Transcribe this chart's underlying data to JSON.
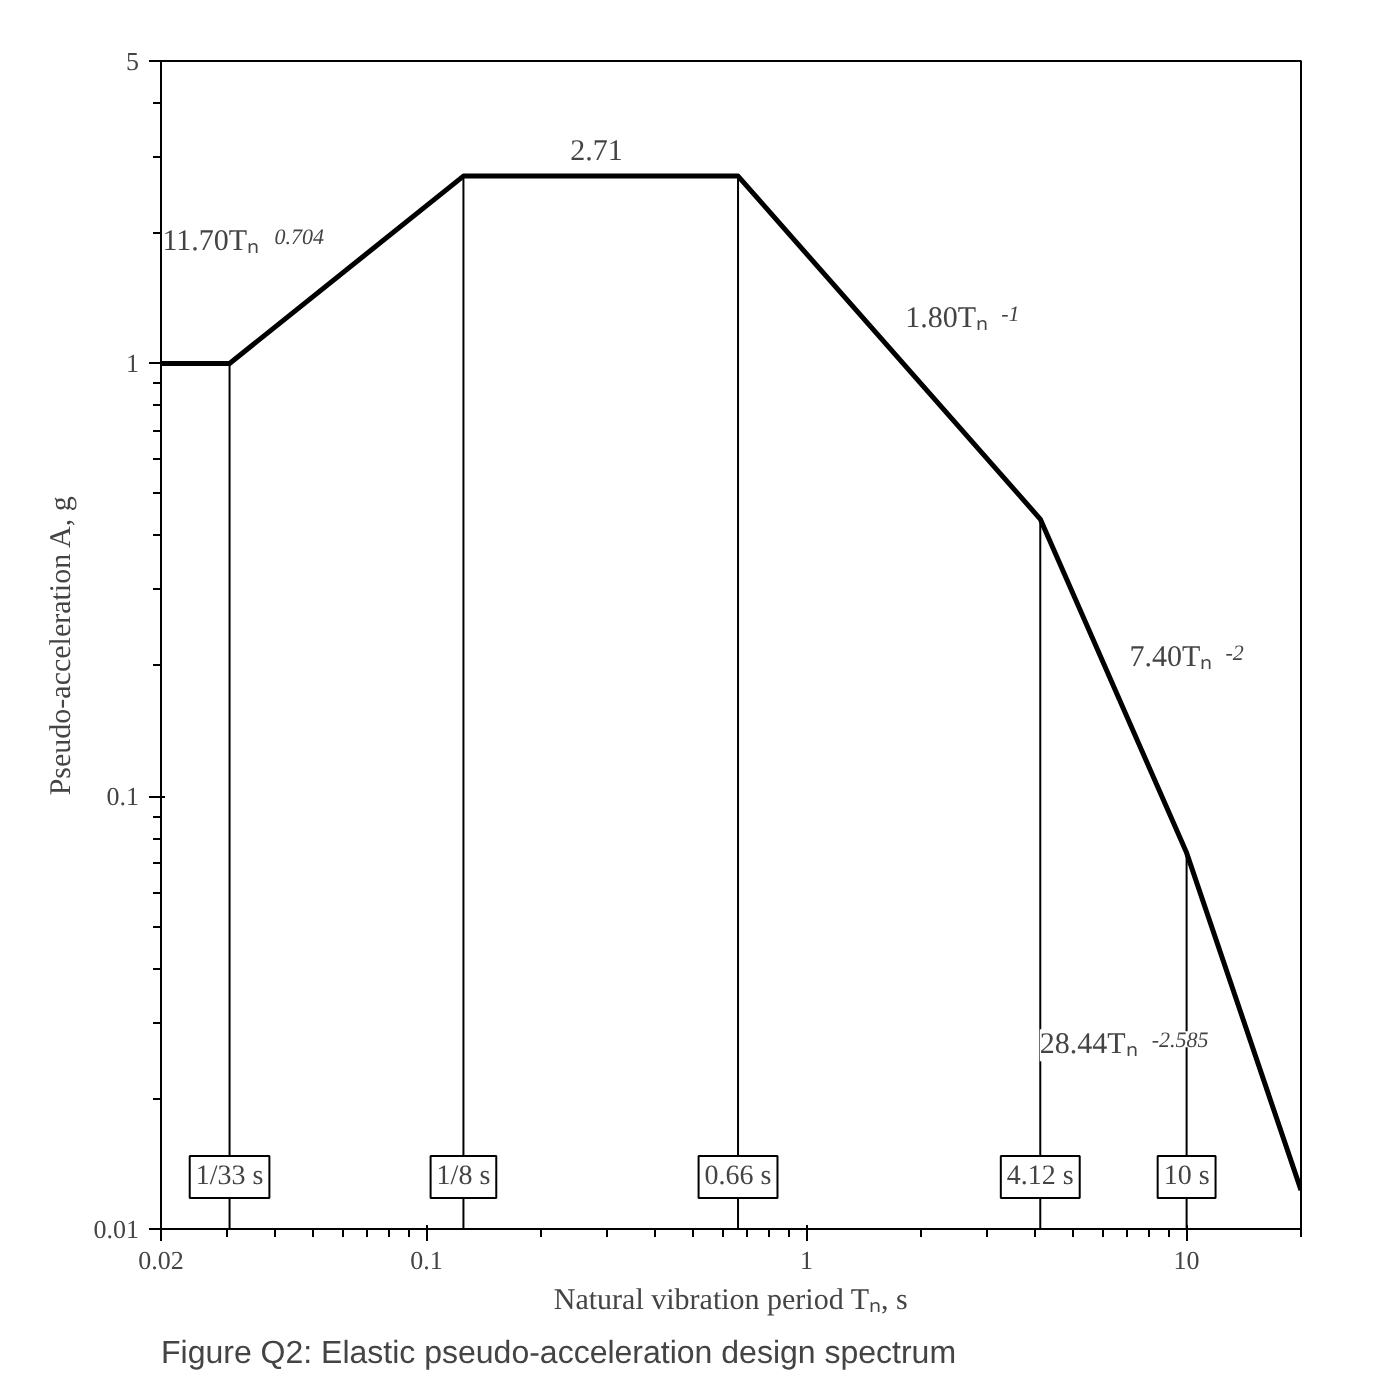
{
  "chart_data": {
    "type": "line",
    "xlabel": "Natural vibration period Tₙ, s",
    "ylabel": "Pseudo-acceleration A, g",
    "x": [
      0.02,
      0.0303,
      0.125,
      0.66,
      4.12,
      10,
      20
    ],
    "series": [
      {
        "color": "#000000",
        "values": [
          1,
          1,
          2.71,
          2.71,
          0.437,
          0.074,
          0.0123
        ]
      }
    ],
    "xlim": [
      0.02,
      20
    ],
    "ylim": [
      0.01,
      5
    ],
    "xticks": [
      0.02,
      0.1,
      1,
      10
    ],
    "yticks": [
      0.01,
      0.1,
      1,
      5
    ],
    "log": "xy",
    "grid": false,
    "marker": "none",
    "line_style": "solid",
    "ref_lines": [
      {
        "axis": "x",
        "value": 0.0303,
        "label": "1/33 s"
      },
      {
        "axis": "x",
        "value": 0.125,
        "label": "1/8 s"
      },
      {
        "axis": "x",
        "value": 0.66,
        "label": "0.66 s"
      },
      {
        "axis": "x",
        "value": 4.12,
        "label": "4.12 s"
      },
      {
        "axis": "x",
        "value": 10,
        "label": "10 s"
      }
    ],
    "annotations": [
      {
        "text": "11.70Tₙ$^{0.704}$",
        "x": 0.0615,
        "y": 1.646
      },
      {
        "text": "2.71",
        "x": 0.29,
        "y": 2.71
      },
      {
        "text": "1.80Tₙ$^{-1}$",
        "x": 1.649,
        "y": 1.09
      },
      {
        "text": "7.40Tₙ$^{-2}$",
        "x": 6.42,
        "y": 0.18
      },
      {
        "text": "28.44Tₙ$^{-2.585}$",
        "x": 14.14,
        "y": 0.0302
      },
      "Figure Q2:  Elastic pseudo-acceleration design spectrum"
    ]
  }
}
